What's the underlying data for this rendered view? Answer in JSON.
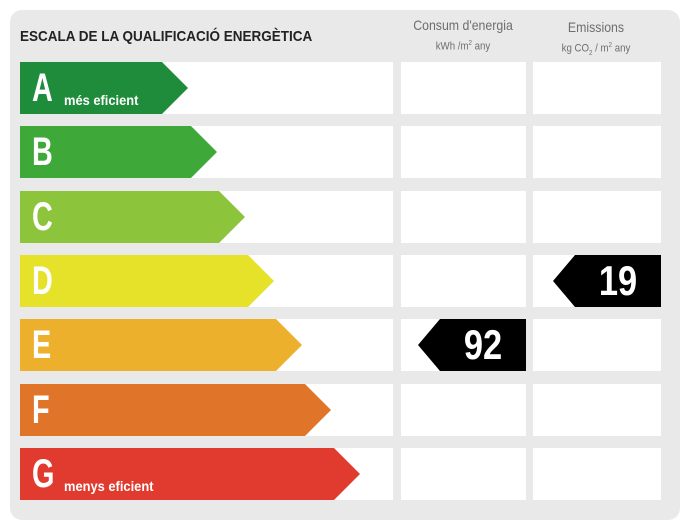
{
  "header": {
    "title": "ESCALA DE LA QUALIFICACIÓ ENERGÈTICA",
    "consum_title": "Consum d'energia",
    "consum_unit_a": "kWh /m",
    "consum_unit_sup": "2",
    "consum_unit_b": " any",
    "emissions_title": "Emissions",
    "emissions_unit_a": "kg CO",
    "emissions_unit_sub": "2",
    "emissions_unit_b": " / m",
    "emissions_unit_sup": "2",
    "emissions_unit_c": " any"
  },
  "classes": [
    {
      "letter": "A",
      "label": "més eficient",
      "color": "#1e8c3a"
    },
    {
      "letter": "B",
      "label": "",
      "color": "#3ea838"
    },
    {
      "letter": "C",
      "label": "",
      "color": "#8cc43c"
    },
    {
      "letter": "D",
      "label": "",
      "color": "#e6e22a"
    },
    {
      "letter": "E",
      "label": "",
      "color": "#edb02c"
    },
    {
      "letter": "F",
      "label": "",
      "color": "#e0752a"
    },
    {
      "letter": "G",
      "label": "menys eficient",
      "color": "#e03b2e"
    }
  ],
  "ratings": {
    "consum": {
      "value": "92",
      "class": "E"
    },
    "emissions": {
      "value": "19",
      "class": "D"
    }
  },
  "marker_color": "#000000"
}
